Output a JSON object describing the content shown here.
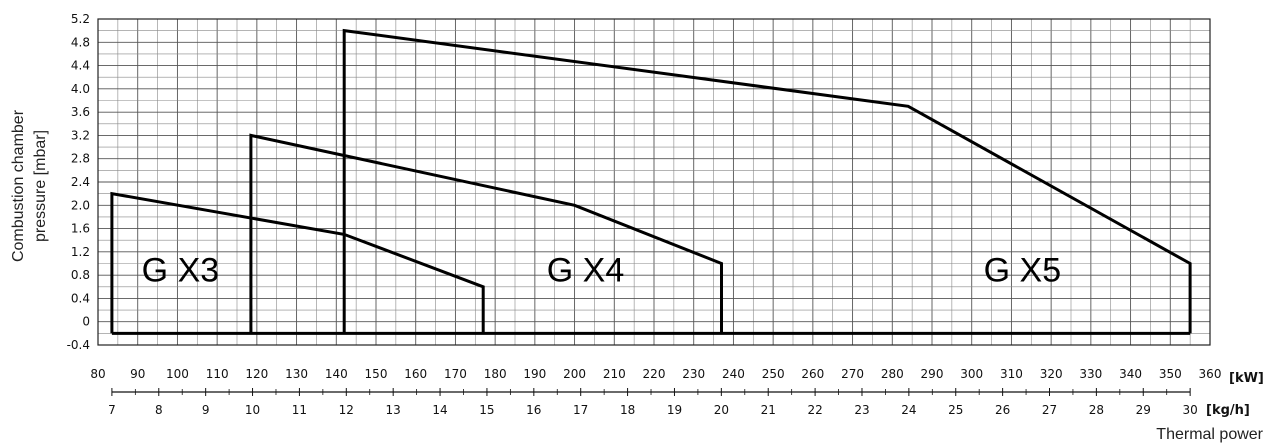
{
  "chart_data": {
    "type": "line",
    "title": "",
    "ylabel_lines": [
      "Combustion chamber",
      "pressure [mbar]"
    ],
    "xlabel": "Thermal power",
    "x_unit_kw": "[kW]",
    "x_unit_kgh": "[kg/h]",
    "xlim_kw": [
      80,
      360
    ],
    "ylim": [
      -0.4,
      5.2
    ],
    "x_ticks_kw": [
      80,
      90,
      100,
      110,
      120,
      130,
      140,
      150,
      160,
      170,
      180,
      190,
      200,
      210,
      220,
      230,
      240,
      250,
      260,
      270,
      280,
      290,
      300,
      310,
      320,
      330,
      340,
      350,
      360
    ],
    "y_ticks": [
      5.2,
      4.8,
      4.4,
      4.0,
      3.6,
      3.2,
      2.8,
      2.4,
      2.0,
      1.6,
      1.2,
      0.8,
      0.4,
      0,
      -0.4
    ],
    "y_tick_labels": [
      "5.2",
      "4.8",
      "4.4",
      "4.0",
      "3.6",
      "3.2",
      "2.8",
      "2.4",
      "2.0",
      "1.6",
      "1.2",
      "0.8",
      "0.4",
      "0",
      "-0.4"
    ],
    "kgh_ticks": [
      7,
      8,
      9,
      10,
      11,
      12,
      13,
      14,
      15,
      16,
      17,
      18,
      19,
      20,
      21,
      22,
      23,
      24,
      25,
      26,
      27,
      28,
      29,
      30
    ],
    "kgh_to_kw": {
      "kgh_a": 7,
      "kw_a": 83.5,
      "kgh_b": 30,
      "kw_b": 355
    },
    "grid": true,
    "series": [
      {
        "name": "G X3",
        "label_at": [
          91,
          0.9
        ],
        "points": [
          [
            83.5,
            -0.2
          ],
          [
            83.5,
            2.2
          ],
          [
            142,
            1.5
          ],
          [
            177,
            0.6
          ],
          [
            177,
            -0.2
          ]
        ]
      },
      {
        "name": "G X4",
        "label_at": [
          193,
          0.9
        ],
        "points": [
          [
            118.5,
            -0.2
          ],
          [
            118.5,
            3.2
          ],
          [
            200,
            2.0
          ],
          [
            237,
            1.0
          ],
          [
            237,
            -0.2
          ]
        ]
      },
      {
        "name": "G X5",
        "label_at": [
          303,
          0.9
        ],
        "points": [
          [
            142,
            -0.2
          ],
          [
            142,
            5.0
          ],
          [
            284,
            3.7
          ],
          [
            355,
            1.0
          ],
          [
            355,
            -0.2
          ]
        ]
      }
    ],
    "dashed_verticals": [
      {
        "x": 118.5,
        "y": [
          -0.2,
          1.8
        ]
      },
      {
        "x": 142,
        "y": [
          -0.2,
          2.85
        ]
      }
    ],
    "baseline": {
      "y": -0.2,
      "x": [
        83.5,
        355
      ]
    }
  }
}
